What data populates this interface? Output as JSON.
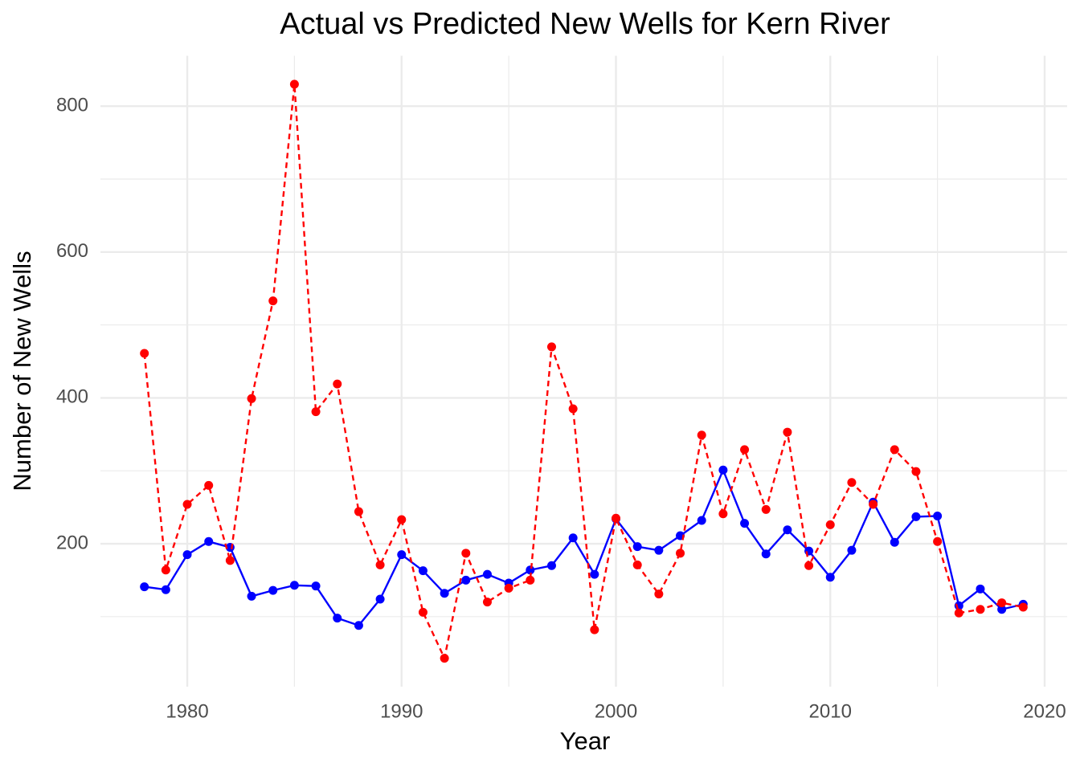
{
  "chart_data": {
    "type": "line",
    "title": "Actual vs Predicted New Wells for Kern River",
    "x_label": "Year",
    "y_label": "Number of New Wells",
    "x": [
      1978,
      1979,
      1980,
      1981,
      1982,
      1983,
      1984,
      1985,
      1986,
      1987,
      1988,
      1989,
      1990,
      1991,
      1992,
      1993,
      1994,
      1995,
      1996,
      1997,
      1998,
      1999,
      2000,
      2001,
      2002,
      2003,
      2004,
      2005,
      2006,
      2007,
      2008,
      2009,
      2010,
      2011,
      2012,
      2013,
      2014,
      2015,
      2016,
      2017,
      2018,
      2019
    ],
    "series": [
      {
        "color": "#0000ff",
        "line_style": "solid",
        "values": [
          141,
          137,
          185,
          203,
          195,
          128,
          136,
          143,
          142,
          98,
          88,
          124,
          185,
          163,
          132,
          150,
          158,
          146,
          164,
          170,
          208,
          158,
          234,
          196,
          191,
          211,
          232,
          301,
          228,
          186,
          219,
          190,
          154,
          191,
          257,
          202,
          237,
          238,
          115,
          138,
          110,
          117
        ]
      },
      {
        "color": "#ff0000",
        "line_style": "dashed",
        "values": [
          461,
          164,
          254,
          280,
          177,
          399,
          533,
          830,
          381,
          419,
          244,
          171,
          233,
          106,
          43,
          187,
          120,
          139,
          150,
          470,
          385,
          82,
          235,
          171,
          131,
          187,
          349,
          241,
          329,
          247,
          353,
          170,
          226,
          284,
          254,
          329,
          299,
          203,
          105,
          110,
          119,
          113
        ]
      }
    ],
    "xlim": [
      1975.95,
      2021.05
    ],
    "xticks": [
      1980,
      1990,
      2000,
      2010,
      2020
    ],
    "minor_xticks": [
      1985,
      1995,
      2005,
      2015
    ],
    "ylim": [
      4,
      869
    ],
    "yticks": [
      200,
      400,
      600,
      800
    ],
    "minor_yticks": [
      100,
      300,
      500,
      700
    ],
    "grid": true
  }
}
